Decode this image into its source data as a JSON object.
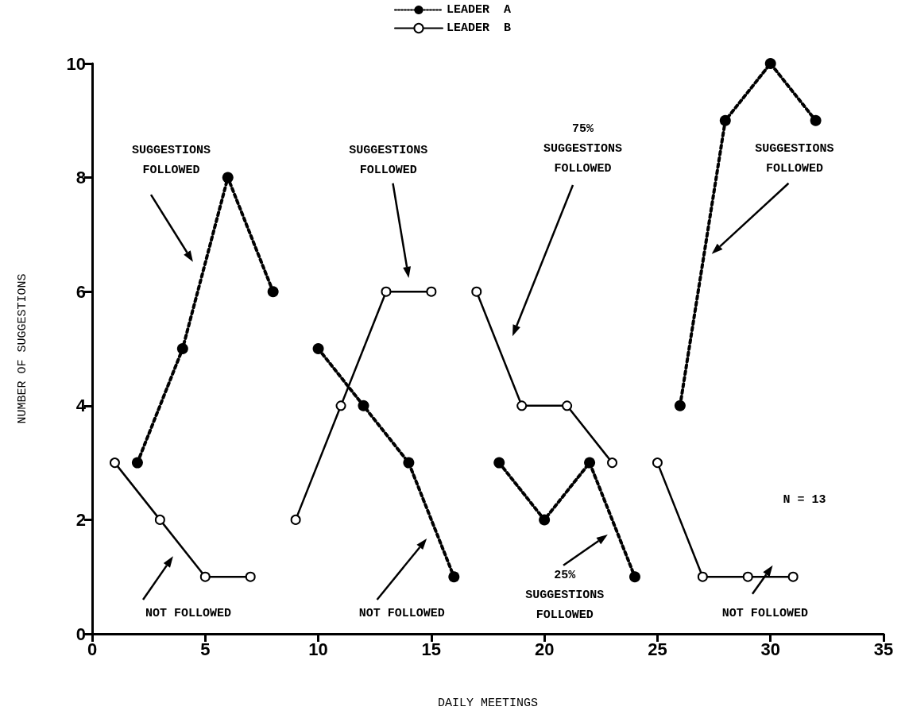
{
  "chart_data": {
    "type": "line",
    "xlabel": "DAILY MEETINGS",
    "ylabel": "NUMBER OF SUGGESTIONS",
    "xlim": [
      0,
      35
    ],
    "xticks": [
      0,
      5,
      10,
      15,
      20,
      25,
      30,
      35
    ],
    "ylim": [
      0,
      10
    ],
    "yticks": [
      0,
      2,
      4,
      6,
      8,
      10
    ],
    "grid": false,
    "legend": "top",
    "marker": "circle",
    "series": [
      {
        "name": "LEADER  A",
        "color": "#000000",
        "line_style": "dotted",
        "x": [
          2,
          4,
          6,
          8,
          9,
          10,
          12,
          14,
          16,
          17,
          18,
          20,
          22,
          24,
          25,
          26,
          28,
          30,
          32
        ],
        "values": [
          3,
          5,
          8,
          6,
          null,
          5,
          4,
          3,
          1,
          null,
          3,
          2,
          3,
          1,
          null,
          4,
          9,
          10,
          9
        ]
      },
      {
        "name": "LEADER  B",
        "color": "#000000",
        "line_style": "solid",
        "x": [
          1,
          3,
          5,
          7,
          8,
          9,
          11,
          13,
          15,
          16,
          17,
          19,
          21,
          23,
          24,
          25,
          27,
          29,
          31
        ],
        "values": [
          3,
          2,
          1,
          1,
          null,
          2,
          4,
          6,
          6,
          null,
          6,
          4,
          4,
          3,
          null,
          3,
          1,
          1,
          1
        ]
      }
    ],
    "annotations": [
      "SUGGESTIONS\nFOLLOWED",
      "NOT FOLLOWED",
      "SUGGESTIONS\nFOLLOWED",
      "NOT FOLLOWED",
      "75%\nSUGGESTIONS\nFOLLOWED",
      "25%\nSUGGESTIONS\nFOLLOWED",
      "SUGGESTIONS\nFOLLOWED",
      "NOT FOLLOWED",
      "N = 13"
    ]
  }
}
